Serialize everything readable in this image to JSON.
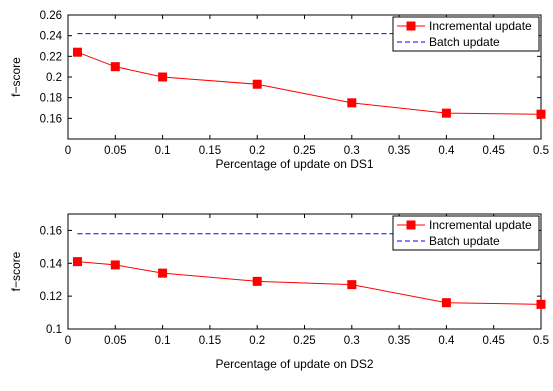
{
  "chart_data": [
    {
      "type": "line",
      "title": "",
      "xlabel": "Percentage of update on DS1",
      "ylabel": "f−score",
      "xlim": [
        0,
        0.5
      ],
      "ylim": [
        0.14,
        0.26
      ],
      "xticks": [
        "0",
        "0.05",
        "0.1",
        "0.15",
        "0.2",
        "0.25",
        "0.3",
        "0.35",
        "0.4",
        "0.45",
        "0.5"
      ],
      "yticks": [
        "0.16",
        "0.18",
        "0.2",
        "0.22",
        "0.24",
        "0.26"
      ],
      "grid": false,
      "legend_position": "top-right",
      "series": [
        {
          "name": "Incremental update",
          "color": "#ff0000",
          "line_style": "solid",
          "marker": "square",
          "x": [
            0.01,
            0.05,
            0.1,
            0.2,
            0.3,
            0.4,
            0.5
          ],
          "y": [
            0.224,
            0.21,
            0.2,
            0.193,
            0.175,
            0.165,
            0.164
          ]
        },
        {
          "name": "Batch update",
          "color": "#0000ff",
          "line_style": "dashed",
          "marker": "none",
          "x": [
            0.01,
            0.5
          ],
          "y": [
            0.242,
            0.242
          ]
        }
      ]
    },
    {
      "type": "line",
      "title": "",
      "xlabel": "Percentage of update on DS2",
      "ylabel": "f−score",
      "xlim": [
        0,
        0.5
      ],
      "ylim": [
        0.1,
        0.17
      ],
      "xticks": [
        "0",
        "0.05",
        "0.1",
        "0.15",
        "0.2",
        "0.25",
        "0.3",
        "0.35",
        "0.4",
        "0.45",
        "0.5"
      ],
      "yticks": [
        "0.1",
        "0.12",
        "0.14",
        "0.16"
      ],
      "grid": false,
      "legend_position": "top-right",
      "series": [
        {
          "name": "Incremental update",
          "color": "#ff0000",
          "line_style": "solid",
          "marker": "square",
          "x": [
            0.01,
            0.05,
            0.1,
            0.2,
            0.3,
            0.4,
            0.5
          ],
          "y": [
            0.141,
            0.139,
            0.134,
            0.129,
            0.127,
            0.116,
            0.115
          ]
        },
        {
          "name": "Batch update",
          "color": "#0000ff",
          "line_style": "dashed",
          "marker": "none",
          "x": [
            0.01,
            0.5
          ],
          "y": [
            0.158,
            0.158
          ]
        }
      ]
    }
  ]
}
